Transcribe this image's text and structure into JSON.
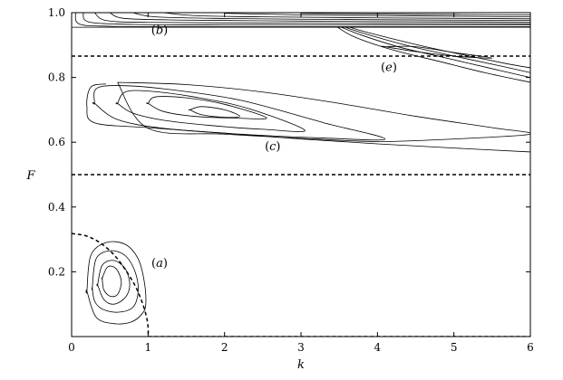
{
  "chart_data": {
    "type": "line",
    "title": "",
    "xlabel": "k",
    "ylabel": "F",
    "xlim": [
      0,
      6
    ],
    "ylim": [
      0,
      1
    ],
    "xticks": [
      0,
      1,
      2,
      3,
      4,
      5,
      6
    ],
    "yticks": [
      0.2,
      0.4,
      0.6,
      0.8,
      1.0
    ],
    "xtick_labels": [
      "0",
      "1",
      "2",
      "3",
      "4",
      "5",
      "6"
    ],
    "ytick_labels": [
      "0.2",
      "0.4",
      "0.6",
      "0.8",
      "1.0"
    ],
    "grid": false,
    "legend": "none",
    "annotations": [
      {
        "letter": "b",
        "x": 1.15,
        "y": 0.935
      },
      {
        "letter": "e",
        "x": 4.15,
        "y": 0.82
      },
      {
        "letter": "c",
        "x": 2.63,
        "y": 0.575
      },
      {
        "letter": "a",
        "x": 1.15,
        "y": 0.215
      }
    ],
    "dashed_lines": [
      {
        "name": "upper-boundary",
        "x": [
          0,
          6
        ],
        "y": [
          0.866,
          0.866
        ]
      },
      {
        "name": "middle-boundary",
        "x": [
          0,
          6
        ],
        "y": [
          0.5,
          0.5
        ]
      },
      {
        "name": "small-k-boundary",
        "x": [
          0,
          0.2,
          0.4,
          0.6,
          0.8,
          0.9,
          0.97,
          1.0,
          1.0
        ],
        "y": [
          0.318,
          0.31,
          0.285,
          0.24,
          0.17,
          0.12,
          0.07,
          0.03,
          0.0
        ]
      },
      {
        "name": "baseline",
        "x": [
          1.0,
          6
        ],
        "y": [
          0.0,
          0.0
        ]
      }
    ],
    "series": [
      {
        "id": "a1",
        "closed": true,
        "x": [
          0.2,
          0.25,
          0.45,
          0.7,
          0.87,
          0.95,
          0.97,
          0.92,
          0.78,
          0.55,
          0.32,
          0.2
        ],
        "y": [
          0.14,
          0.25,
          0.29,
          0.285,
          0.24,
          0.17,
          0.1,
          0.07,
          0.045,
          0.04,
          0.06,
          0.14
        ]
      },
      {
        "id": "a2",
        "closed": true,
        "x": [
          0.27,
          0.32,
          0.5,
          0.7,
          0.83,
          0.87,
          0.8,
          0.6,
          0.4,
          0.3,
          0.27
        ],
        "y": [
          0.15,
          0.24,
          0.265,
          0.25,
          0.2,
          0.14,
          0.09,
          0.075,
          0.085,
          0.11,
          0.15
        ]
      },
      {
        "id": "a3",
        "closed": true,
        "x": [
          0.34,
          0.4,
          0.55,
          0.7,
          0.76,
          0.7,
          0.55,
          0.42,
          0.34
        ],
        "y": [
          0.16,
          0.22,
          0.235,
          0.21,
          0.16,
          0.12,
          0.1,
          0.115,
          0.16
        ]
      },
      {
        "id": "a4",
        "closed": true,
        "x": [
          0.4,
          0.47,
          0.58,
          0.65,
          0.6,
          0.5,
          0.42,
          0.4
        ],
        "y": [
          0.18,
          0.215,
          0.21,
          0.17,
          0.13,
          0.125,
          0.145,
          0.18
        ]
      },
      {
        "id": "c1",
        "closed": false,
        "x": [
          0.45,
          0.25,
          0.2,
          0.3,
          1.0,
          2.0,
          3.0,
          4.0,
          5.0,
          6.0
        ],
        "y": [
          0.78,
          0.77,
          0.71,
          0.66,
          0.645,
          0.628,
          0.61,
          0.595,
          0.582,
          0.57
        ]
      },
      {
        "id": "c2",
        "closed": false,
        "x": [
          0.6,
          1.5,
          2.5,
          3.5,
          4.5,
          5.5,
          6.0,
          5.0,
          4.0,
          3.0,
          2.0,
          1.0,
          0.6
        ],
        "y": [
          0.785,
          0.778,
          0.755,
          0.72,
          0.68,
          0.645,
          0.625,
          0.61,
          0.602,
          0.612,
          0.625,
          0.643,
          0.785
        ]
      },
      {
        "id": "c3",
        "closed": true,
        "x": [
          0.3,
          0.32,
          0.6,
          1.2,
          2.2,
          3.3,
          4.1,
          3.3,
          2.2,
          1.2,
          0.6,
          0.3
        ],
        "y": [
          0.72,
          0.765,
          0.775,
          0.765,
          0.73,
          0.66,
          0.61,
          0.613,
          0.625,
          0.643,
          0.67,
          0.72
        ]
      },
      {
        "id": "c4",
        "closed": true,
        "x": [
          0.6,
          0.7,
          1.0,
          1.6,
          2.3,
          3.05,
          2.5,
          1.8,
          1.2,
          0.8,
          0.6
        ],
        "y": [
          0.72,
          0.755,
          0.758,
          0.74,
          0.705,
          0.637,
          0.64,
          0.652,
          0.668,
          0.69,
          0.72
        ]
      },
      {
        "id": "c5",
        "closed": true,
        "x": [
          1.0,
          1.1,
          1.5,
          2.0,
          2.55,
          2.1,
          1.6,
          1.2,
          1.0
        ],
        "y": [
          0.72,
          0.74,
          0.737,
          0.717,
          0.675,
          0.675,
          0.68,
          0.695,
          0.72
        ]
      },
      {
        "id": "c6",
        "closed": true,
        "x": [
          1.55,
          1.7,
          2.0,
          2.2,
          2.0,
          1.7,
          1.55
        ],
        "y": [
          0.7,
          0.71,
          0.7,
          0.68,
          0.677,
          0.685,
          0.7
        ]
      },
      {
        "id": "b1",
        "closed": false,
        "x": [
          0.0,
          6.0
        ],
        "y": [
          0.955,
          0.955
        ]
      },
      {
        "id": "b2",
        "closed": false,
        "x": [
          0.05,
          0.1,
          0.5,
          1.5,
          3.0,
          4.5,
          6.0
        ],
        "y": [
          1.0,
          0.965,
          0.958,
          0.957,
          0.957,
          0.957,
          0.957
        ]
      },
      {
        "id": "b3",
        "closed": false,
        "x": [
          0.15,
          0.25,
          1.0,
          2.0,
          3.5,
          6.0
        ],
        "y": [
          1.0,
          0.97,
          0.963,
          0.962,
          0.962,
          0.962
        ]
      },
      {
        "id": "b4",
        "closed": false,
        "x": [
          0.3,
          0.45,
          1.0,
          2.5,
          4.0,
          6.0
        ],
        "y": [
          1.0,
          0.976,
          0.97,
          0.968,
          0.967,
          0.966
        ]
      },
      {
        "id": "b5",
        "closed": false,
        "x": [
          0.5,
          0.7,
          1.5,
          3.0,
          4.5,
          6.0
        ],
        "y": [
          1.0,
          0.982,
          0.977,
          0.974,
          0.972,
          0.971
        ]
      },
      {
        "id": "b6",
        "closed": false,
        "x": [
          0.8,
          1.1,
          2.0,
          3.5,
          5.0,
          6.0
        ],
        "y": [
          1.0,
          0.987,
          0.982,
          0.979,
          0.977,
          0.976
        ]
      },
      {
        "id": "b7",
        "closed": false,
        "x": [
          1.2,
          1.6,
          2.5,
          4.0,
          6.0
        ],
        "y": [
          1.0,
          0.991,
          0.987,
          0.984,
          0.981
        ]
      },
      {
        "id": "b8",
        "closed": false,
        "x": [
          2.0,
          3.0,
          4.5,
          6.0
        ],
        "y": [
          0.998,
          0.993,
          0.99,
          0.987
        ]
      },
      {
        "id": "b9",
        "closed": false,
        "x": [
          3.0,
          4.5,
          6.0
        ],
        "y": [
          0.998,
          0.995,
          0.993
        ]
      },
      {
        "id": "e1",
        "closed": false,
        "x": [
          3.48,
          3.7,
          4.2,
          4.8,
          5.4,
          6.0
        ],
        "y": [
          0.955,
          0.925,
          0.885,
          0.85,
          0.815,
          0.785
        ]
      },
      {
        "id": "e2",
        "closed": false,
        "x": [
          3.53,
          3.8,
          4.3,
          4.9,
          5.5,
          6.0
        ],
        "y": [
          0.955,
          0.93,
          0.893,
          0.86,
          0.827,
          0.8
        ]
      },
      {
        "id": "e3",
        "closed": false,
        "x": [
          3.58,
          3.85,
          4.4,
          5.0,
          5.6,
          6.0
        ],
        "y": [
          0.955,
          0.934,
          0.898,
          0.866,
          0.836,
          0.815
        ]
      },
      {
        "id": "e4",
        "closed": false,
        "x": [
          3.64,
          3.9,
          4.5,
          5.1,
          5.7,
          6.0
        ],
        "y": [
          0.955,
          0.937,
          0.902,
          0.871,
          0.842,
          0.83
        ]
      },
      {
        "id": "e5",
        "closed": true,
        "x": [
          4.1,
          4.5,
          5.0,
          5.5,
          5.0,
          4.5,
          4.1
        ],
        "y": [
          0.895,
          0.895,
          0.877,
          0.86,
          0.866,
          0.88,
          0.895
        ]
      }
    ]
  }
}
